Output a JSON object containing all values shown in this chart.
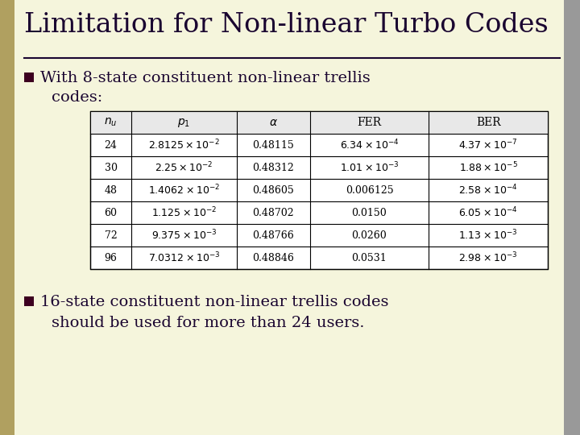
{
  "title": "Limitation for Non-linear Turbo Codes",
  "bg_color": "#f5f5dc",
  "title_color": "#1a0530",
  "title_underline_color": "#1a0530",
  "bullet_color": "#3d0020",
  "bullet1_line1": "With 8-state constituent non-linear trellis",
  "bullet1_line2": "codes:",
  "bullet2_line1": "16-state constituent non-linear trellis codes",
  "bullet2_line2": "should be used for more than 24 users.",
  "table_headers": [
    "$n_u$",
    "$p_1$",
    "$\\alpha$",
    "FER",
    "BER"
  ],
  "table_col_italic": [
    true,
    true,
    true,
    false,
    false
  ],
  "table_data": [
    [
      "24",
      "$2.8125 \\times 10^{-2}$",
      "0.48115",
      "$6.34 \\times 10^{-4}$",
      "$4.37 \\times 10^{-7}$"
    ],
    [
      "30",
      "$2.25 \\times 10^{-2}$",
      "0.48312",
      "$1.01 \\times 10^{-3}$",
      "$1.88 \\times 10^{-5}$"
    ],
    [
      "48",
      "$1.4062 \\times 10^{-2}$",
      "0.48605",
      "0.006125",
      "$2.58 \\times 10^{-4}$"
    ],
    [
      "60",
      "$1.125 \\times 10^{-2}$",
      "0.48702",
      "0.0150",
      "$6.05 \\times 10^{-4}$"
    ],
    [
      "72",
      "$9.375 \\times 10^{-3}$",
      "0.48766",
      "0.0260",
      "$1.13 \\times 10^{-3}$"
    ],
    [
      "96",
      "$7.0312 \\times 10^{-3}$",
      "0.48846",
      "0.0531",
      "$2.98 \\times 10^{-3}$"
    ]
  ],
  "left_bar_color": "#b0a060",
  "right_bar_color": "#999999"
}
